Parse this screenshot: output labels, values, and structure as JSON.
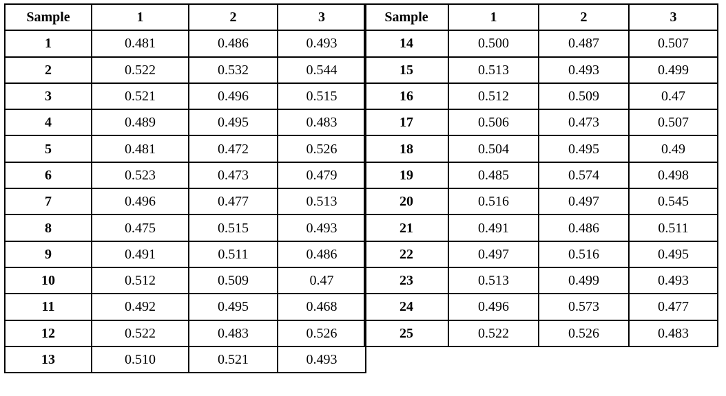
{
  "page": {
    "background_color": "#ffffff",
    "border_color": "#000000",
    "text_color": "#000000"
  },
  "tables": [
    {
      "name": "samples-1-13",
      "headers": [
        "Sample",
        "1",
        "2",
        "3"
      ],
      "rows": [
        {
          "sample": "1",
          "values": [
            "0.481",
            "0.486",
            "0.493"
          ]
        },
        {
          "sample": "2",
          "values": [
            "0.522",
            "0.532",
            "0.544"
          ]
        },
        {
          "sample": "3",
          "values": [
            "0.521",
            "0.496",
            "0.515"
          ]
        },
        {
          "sample": "4",
          "values": [
            "0.489",
            "0.495",
            "0.483"
          ]
        },
        {
          "sample": "5",
          "values": [
            "0.481",
            "0.472",
            "0.526"
          ]
        },
        {
          "sample": "6",
          "values": [
            "0.523",
            "0.473",
            "0.479"
          ]
        },
        {
          "sample": "7",
          "values": [
            "0.496",
            "0.477",
            "0.513"
          ]
        },
        {
          "sample": "8",
          "values": [
            "0.475",
            "0.515",
            "0.493"
          ]
        },
        {
          "sample": "9",
          "values": [
            "0.491",
            "0.511",
            "0.486"
          ]
        },
        {
          "sample": "10",
          "values": [
            "0.512",
            "0.509",
            "0.47"
          ]
        },
        {
          "sample": "11",
          "values": [
            "0.492",
            "0.495",
            "0.468"
          ]
        },
        {
          "sample": "12",
          "values": [
            "0.522",
            "0.483",
            "0.526"
          ]
        },
        {
          "sample": "13",
          "values": [
            "0.510",
            "0.521",
            "0.493"
          ]
        }
      ]
    },
    {
      "name": "samples-14-25",
      "headers": [
        "Sample",
        "1",
        "2",
        "3"
      ],
      "rows": [
        {
          "sample": "14",
          "values": [
            "0.500",
            "0.487",
            "0.507"
          ]
        },
        {
          "sample": "15",
          "values": [
            "0.513",
            "0.493",
            "0.499"
          ]
        },
        {
          "sample": "16",
          "values": [
            "0.512",
            "0.509",
            "0.47"
          ]
        },
        {
          "sample": "17",
          "values": [
            "0.506",
            "0.473",
            "0.507"
          ]
        },
        {
          "sample": "18",
          "values": [
            "0.504",
            "0.495",
            "0.49"
          ]
        },
        {
          "sample": "19",
          "values": [
            "0.485",
            "0.574",
            "0.498"
          ]
        },
        {
          "sample": "20",
          "values": [
            "0.516",
            "0.497",
            "0.545"
          ]
        },
        {
          "sample": "21",
          "values": [
            "0.491",
            "0.486",
            "0.511"
          ]
        },
        {
          "sample": "22",
          "values": [
            "0.497",
            "0.516",
            "0.495"
          ]
        },
        {
          "sample": "23",
          "values": [
            "0.513",
            "0.499",
            "0.493"
          ]
        },
        {
          "sample": "24",
          "values": [
            "0.496",
            "0.573",
            "0.477"
          ]
        },
        {
          "sample": "25",
          "values": [
            "0.522",
            "0.526",
            "0.483"
          ]
        }
      ]
    }
  ]
}
